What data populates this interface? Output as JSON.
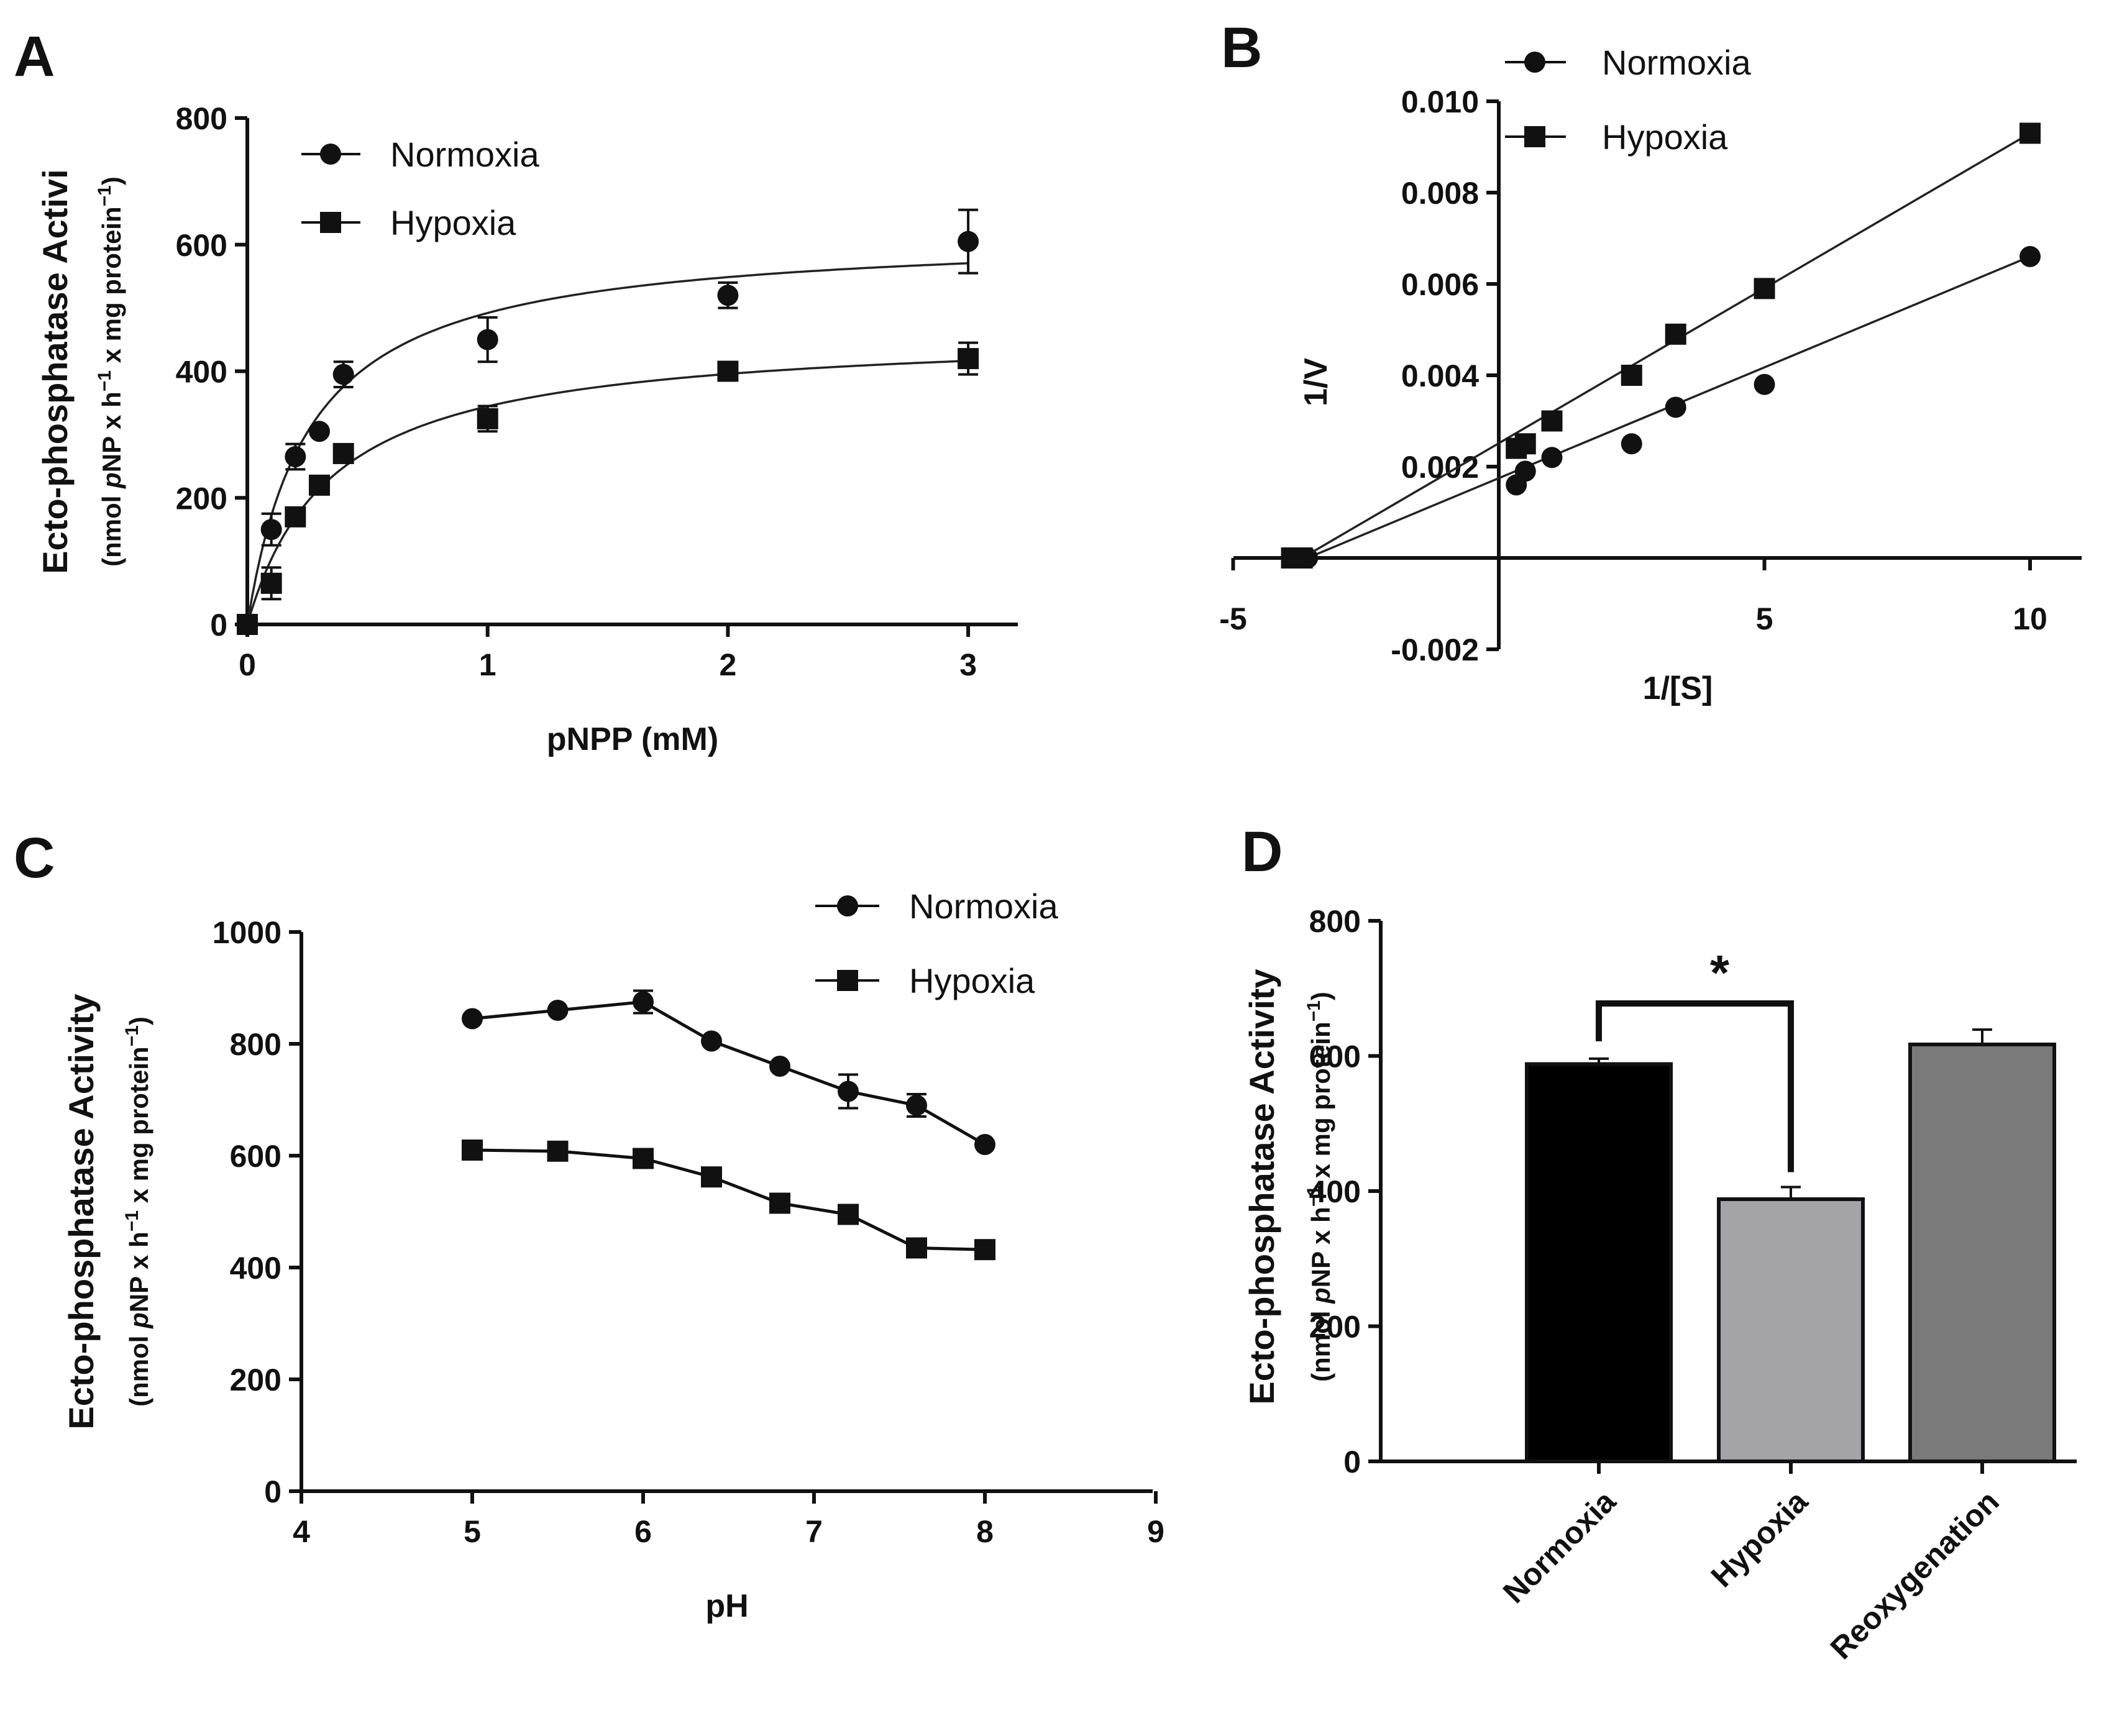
{
  "chart_data": [
    {
      "panel": "A",
      "type": "scatter",
      "xlabel": "pNPP (mM)",
      "ylabel": "Ecto-phosphatase Activi",
      "ylabel_unit_parts": [
        "(nmol ",
        "p",
        "NP x h",
        "−1",
        " x mg protein",
        "−1",
        ")"
      ],
      "xlim": [
        0,
        3.2
      ],
      "ylim": [
        0,
        800
      ],
      "xticks": [
        0,
        1,
        2,
        3
      ],
      "yticks": [
        0,
        200,
        400,
        600,
        800
      ],
      "legend": "top-left",
      "fit": "Michaelis-Menten curve",
      "series": [
        {
          "name": "Normoxia",
          "marker": "circle",
          "x": [
            0,
            0.1,
            0.2,
            0.3,
            0.4,
            1,
            2,
            3
          ],
          "y": [
            0,
            150,
            265,
            305,
            395,
            450,
            520,
            605
          ],
          "err": [
            0,
            25,
            20,
            0,
            20,
            35,
            20,
            50
          ],
          "fit_vmax": 620,
          "fit_km": 0.26
        },
        {
          "name": "Hypoxia",
          "marker": "square",
          "x": [
            0,
            0.1,
            0.2,
            0.3,
            0.4,
            1,
            2,
            3
          ],
          "y": [
            0,
            65,
            170,
            220,
            270,
            325,
            400,
            420
          ],
          "err": [
            0,
            25,
            0,
            0,
            0,
            20,
            0,
            25
          ],
          "fit_vmax": 465,
          "fit_km": 0.35
        }
      ]
    },
    {
      "panel": "B",
      "type": "line",
      "xlabel": "1/[S]",
      "ylabel": "1/V",
      "xlim": [
        -5,
        10.5
      ],
      "ylim": [
        -0.002,
        0.01
      ],
      "xticks": [
        -5,
        5,
        10
      ],
      "yticks": [
        -0.002,
        0.002,
        0.004,
        0.006,
        0.008,
        0.01
      ],
      "ytick_labels": [
        "-0.002",
        "0.002",
        "0.004",
        "0.006",
        "0.008",
        "0.010"
      ],
      "legend": "top-left",
      "series": [
        {
          "name": "Normoxia",
          "marker": "circle",
          "x": [
            -3.6,
            -3.8,
            0.33,
            0.5,
            1,
            2.5,
            3.33,
            5,
            10
          ],
          "y": [
            0,
            0,
            0.0016,
            0.0019,
            0.0022,
            0.0025,
            0.0033,
            0.0038,
            0.0066
          ],
          "fit": [
            [
              -3.6,
              0
            ],
            [
              10,
              0.0066
            ]
          ]
        },
        {
          "name": "Hypoxia",
          "marker": "square",
          "x": [
            -3.7,
            -3.9,
            0.33,
            0.5,
            1,
            2.5,
            3.33,
            5,
            10
          ],
          "y": [
            0,
            0,
            0.0024,
            0.0025,
            0.003,
            0.004,
            0.0049,
            0.0059,
            0.0093
          ],
          "fit": [
            [
              -3.7,
              0
            ],
            [
              10,
              0.0093
            ]
          ]
        }
      ]
    },
    {
      "panel": "C",
      "type": "line",
      "xlabel": "pH",
      "ylabel": "Ecto-phosphatase Activity",
      "ylabel_unit_parts": [
        "(nmol ",
        "p",
        "NP x h",
        "−1",
        " x mg protein",
        "−1",
        ")"
      ],
      "xlim": [
        4,
        9
      ],
      "ylim": [
        0,
        1000
      ],
      "xticks": [
        4,
        5,
        6,
        7,
        8,
        9
      ],
      "yticks": [
        0,
        200,
        400,
        600,
        800,
        1000
      ],
      "legend": "top-right",
      "series": [
        {
          "name": "Normoxia",
          "marker": "circle",
          "x": [
            5,
            5.5,
            6,
            6.4,
            6.8,
            7.2,
            7.6,
            8
          ],
          "y": [
            845,
            860,
            875,
            805,
            760,
            715,
            690,
            620
          ],
          "err": [
            0,
            0,
            20,
            0,
            0,
            30,
            20,
            0
          ]
        },
        {
          "name": "Hypoxia",
          "marker": "square",
          "x": [
            5,
            5.5,
            6,
            6.4,
            6.8,
            7.2,
            7.6,
            8
          ],
          "y": [
            610,
            608,
            595,
            562,
            515,
            495,
            435,
            432
          ],
          "err": [
            0,
            0,
            0,
            0,
            0,
            0,
            0,
            0
          ]
        }
      ]
    },
    {
      "panel": "D",
      "type": "bar",
      "ylabel": "Ecto-phosphatase Activity",
      "ylabel_unit_parts": [
        "(nmol ",
        "p",
        "NP x h",
        "−1",
        " x mg protein",
        "−1",
        ")"
      ],
      "ylim": [
        0,
        800
      ],
      "yticks": [
        0,
        200,
        400,
        600,
        800
      ],
      "categories": [
        "Normoxia",
        "Hypoxia",
        "Reoxygenation"
      ],
      "values": [
        588,
        388,
        617
      ],
      "err": [
        8,
        18,
        22
      ],
      "colors": [
        "#000000",
        "#a3a3a8",
        "#7a7a7a"
      ],
      "significance": {
        "between": [
          0,
          1
        ],
        "label": "*"
      }
    }
  ]
}
